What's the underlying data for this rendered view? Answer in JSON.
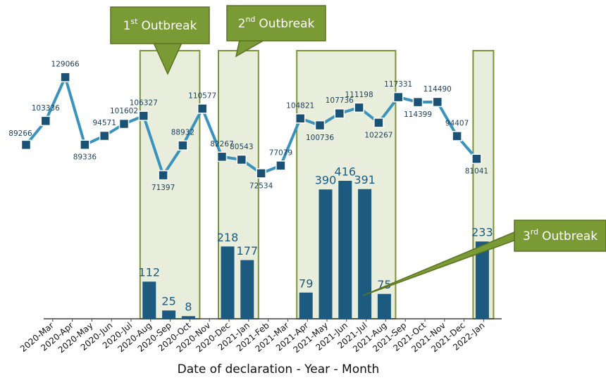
{
  "chart_data": {
    "type": "bar_line",
    "x_label": "Date of declaration - Year - Month",
    "categories": [
      null,
      "2020-Mar",
      "2020-Apr",
      "2020-May",
      "2020-Jun",
      "2020-Jul",
      "2020-Aug",
      "2020-Sep",
      "2020-Oct",
      "2020-Nov",
      "2020-Dec",
      "2021-Jan",
      "2021-Feb",
      "2021-Mar",
      "2021-Apr",
      "2021-May",
      "2021-Jun",
      "2021-Jul",
      "2021-Aug",
      "2021-Sep",
      "2021-Oct",
      "2021-Nov",
      "2021-Dec",
      "2022-Jan"
    ],
    "series": [
      {
        "type": "bar",
        "color": "#1c5a80",
        "values": [
          null,
          null,
          null,
          null,
          null,
          null,
          112,
          25,
          8,
          null,
          218,
          177,
          null,
          null,
          79,
          390,
          416,
          391,
          75,
          null,
          null,
          null,
          null,
          233
        ]
      },
      {
        "type": "line",
        "axis": "y2",
        "color": "#3a93bd",
        "marker_color": "#1a5276",
        "values": [
          89266,
          103336,
          129066,
          89336,
          94571,
          101602,
          106327,
          71397,
          88932,
          110577,
          82267,
          80543,
          72534,
          77079,
          104821,
          100736,
          107736,
          111198,
          102267,
          117331,
          114399,
          114490,
          94407,
          81041
        ]
      }
    ],
    "ylim": [
      0,
      800
    ],
    "y2lim": [
      -13000,
      143000
    ],
    "annotations": [
      {
        "number": "1",
        "suffix": "st",
        "text": "Outbreak",
        "regions": [
          [
            "2020-Aug",
            "2020-Oct"
          ]
        ]
      },
      {
        "number": "2",
        "suffix": "nd",
        "text": "Outbreak",
        "regions": [
          [
            "2020-Dec",
            "2021-Jan"
          ]
        ]
      },
      {
        "number": "3",
        "suffix": "rd",
        "text": "Outbreak",
        "regions": [
          [
            "2021-Apr",
            "2021-Aug"
          ],
          [
            "2022-Jan",
            "2022-Jan"
          ]
        ]
      }
    ]
  }
}
